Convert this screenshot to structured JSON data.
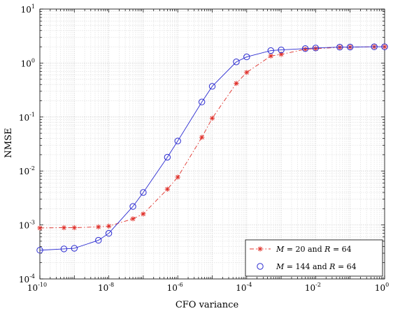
{
  "chart_data": {
    "type": "line",
    "x_scale": "log",
    "y_scale": "log",
    "xlabel": "CFO variance",
    "ylabel": "NMSE",
    "xlim": [
      1e-10,
      1
    ],
    "ylim": [
      0.0001,
      10
    ],
    "grid": true,
    "legend_position": "bottom-right",
    "x_tick_labels": [
      {
        "base": "10",
        "exp": "-10"
      },
      {
        "base": "10",
        "exp": "-8"
      },
      {
        "base": "10",
        "exp": "-6"
      },
      {
        "base": "10",
        "exp": "-4"
      },
      {
        "base": "10",
        "exp": "-2"
      },
      {
        "base": "10",
        "exp": "0"
      }
    ],
    "y_tick_labels": [
      {
        "base": "10",
        "exp": "-4"
      },
      {
        "base": "10",
        "exp": "-3"
      },
      {
        "base": "10",
        "exp": "-2"
      },
      {
        "base": "10",
        "exp": "-1"
      },
      {
        "base": "10",
        "exp": "0"
      },
      {
        "base": "10",
        "exp": "1"
      }
    ],
    "series": [
      {
        "name": "M = 20 and R = 64",
        "color": "#e0302a",
        "marker": "star",
        "line_style": "dashdot",
        "x": [
          1e-10,
          5e-10,
          1e-09,
          5e-09,
          1e-08,
          5e-08,
          1e-07,
          5e-07,
          1e-06,
          5e-06,
          1e-05,
          5e-05,
          0.0001,
          0.0005,
          0.001,
          0.005,
          0.01,
          0.05,
          0.1,
          0.5,
          1
        ],
        "y": [
          0.00088,
          0.00089,
          0.00089,
          0.00092,
          0.00095,
          0.0013,
          0.0016,
          0.0046,
          0.0077,
          0.042,
          0.095,
          0.42,
          0.67,
          1.35,
          1.45,
          1.8,
          1.85,
          1.95,
          1.97,
          2.0,
          2.0
        ]
      },
      {
        "name": "M = 144 and R = 64",
        "color": "#2b2bd1",
        "marker": "circle",
        "line_style": "solid",
        "x": [
          1e-10,
          5e-10,
          1e-09,
          5e-09,
          1e-08,
          5e-08,
          1e-07,
          5e-07,
          1e-06,
          5e-06,
          1e-05,
          5e-05,
          0.0001,
          0.0005,
          0.001,
          0.005,
          0.01,
          0.05,
          0.1,
          0.5,
          1
        ],
        "y": [
          0.00034,
          0.00036,
          0.00037,
          0.00052,
          0.0007,
          0.0022,
          0.004,
          0.018,
          0.036,
          0.19,
          0.37,
          1.05,
          1.3,
          1.7,
          1.75,
          1.85,
          1.9,
          1.97,
          1.98,
          2.0,
          2.0
        ]
      }
    ],
    "legend": {
      "entries": [
        {
          "var1": "M",
          "val1": "20",
          "var2": "R",
          "val2": "64"
        },
        {
          "var1": "M",
          "val1": "144",
          "var2": "R",
          "val2": "64"
        }
      ],
      "eq": "=",
      "conj": "and"
    }
  }
}
